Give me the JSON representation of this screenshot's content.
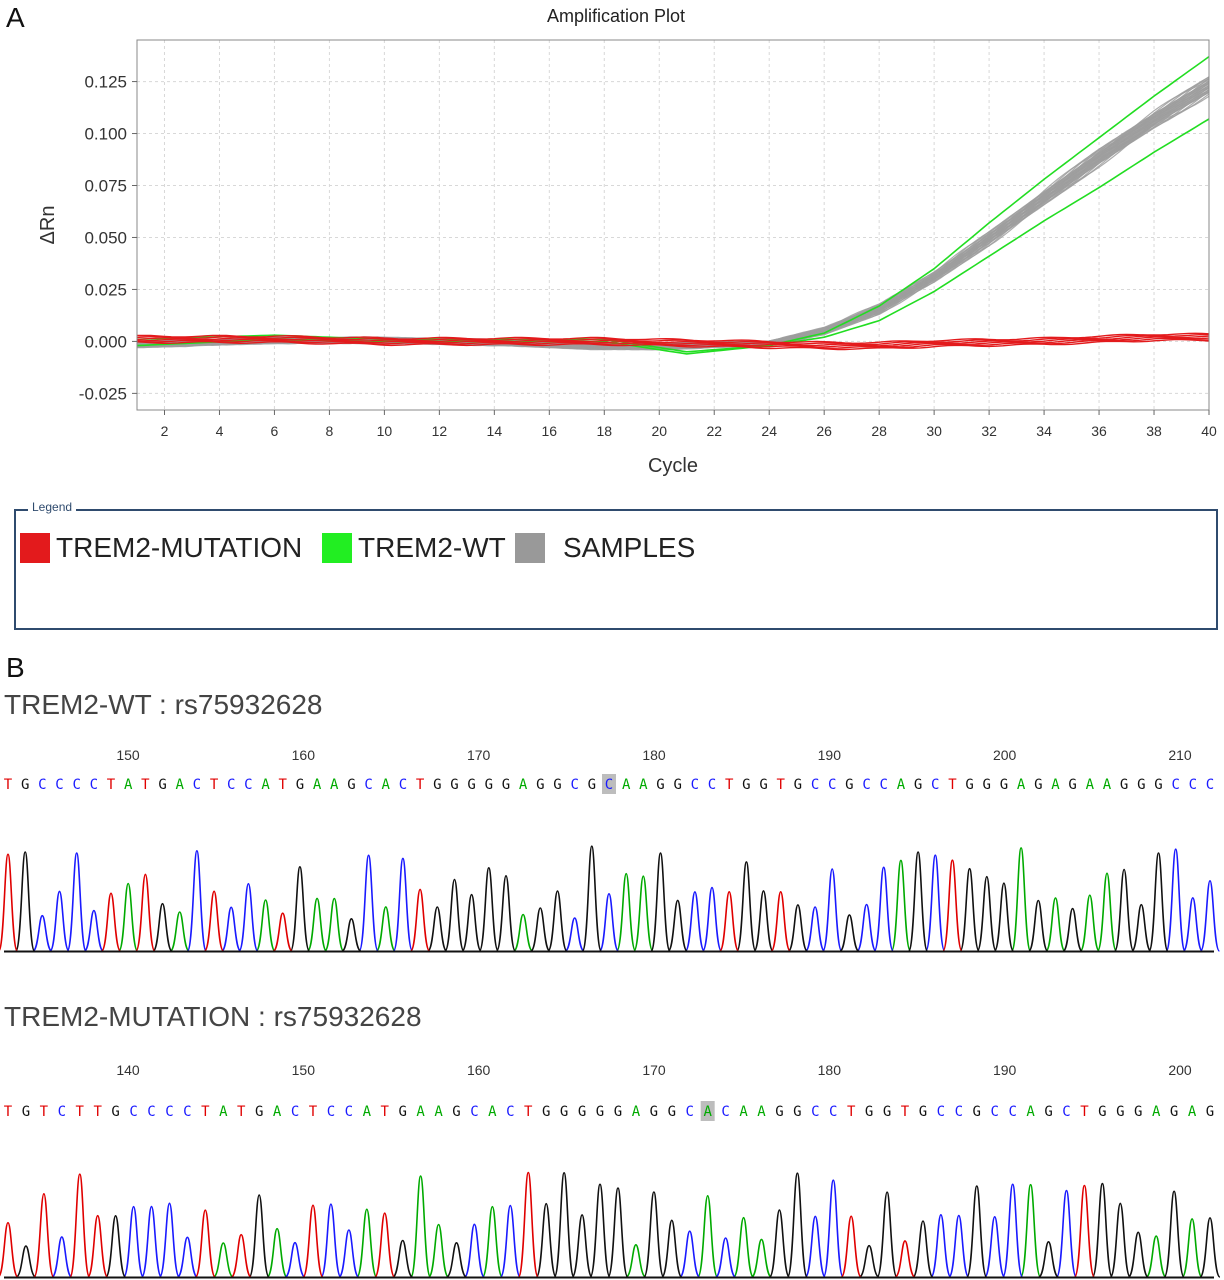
{
  "panels": {
    "a": "A",
    "b": "B"
  },
  "chart_data": {
    "type": "line",
    "title": "Amplification Plot",
    "xlabel": "Cycle",
    "ylabel": "ΔRn",
    "xlim": [
      1,
      40
    ],
    "ylim": [
      -0.033,
      0.145
    ],
    "x_ticks": [
      2,
      4,
      6,
      8,
      10,
      12,
      14,
      16,
      18,
      20,
      22,
      24,
      26,
      28,
      30,
      32,
      34,
      36,
      38,
      40
    ],
    "y_ticks": [
      -0.025,
      0.0,
      0.025,
      0.05,
      0.075,
      0.1,
      0.125
    ],
    "y_tick_labels": [
      "-0.025",
      "0.000",
      "0.025",
      "0.050",
      "0.075",
      "0.100",
      "0.125"
    ],
    "grid": true,
    "series": [
      {
        "name": "TREM2-MUTATION",
        "color": "#e31a1c",
        "x": [
          1,
          6,
          10,
          14,
          18,
          22,
          26,
          28,
          30,
          32,
          34,
          36,
          38,
          40
        ],
        "y": [
          0.001,
          0.001,
          0.0,
          0.0,
          0.0,
          -0.001,
          -0.002,
          -0.002,
          -0.001,
          -0.0005,
          0.0,
          0.001,
          0.002,
          0.002
        ]
      },
      {
        "name": "TREM2-WT",
        "color": "#22dd22",
        "x": [
          1,
          6,
          10,
          14,
          18,
          20,
          21,
          24,
          26,
          28,
          30,
          32,
          34,
          36,
          38,
          40
        ],
        "y": [
          0.001,
          0.003,
          0.001,
          0.001,
          0.001,
          -0.003,
          -0.005,
          -0.002,
          0.004,
          0.017,
          0.035,
          0.057,
          0.078,
          0.098,
          0.118,
          0.137
        ]
      },
      {
        "name": "TREM2-WT",
        "color": "#22dd22",
        "x": [
          1,
          6,
          10,
          14,
          18,
          20,
          21,
          24,
          26,
          28,
          30,
          32,
          34,
          36,
          38,
          40
        ],
        "y": [
          -0.002,
          0.001,
          0.0,
          0.0,
          0.0,
          -0.004,
          -0.006,
          -0.002,
          0.002,
          0.01,
          0.024,
          0.041,
          0.058,
          0.074,
          0.091,
          0.107
        ]
      },
      {
        "name": "SAMPLES",
        "color": "#9e9e9e",
        "x": [
          1,
          6,
          10,
          14,
          18,
          20,
          22,
          24,
          26,
          28,
          30,
          32,
          34,
          36,
          38,
          40
        ],
        "y": [
          -0.001,
          0.001,
          0.001,
          0.0,
          -0.002,
          -0.002,
          -0.001,
          -0.001,
          0.006,
          0.017,
          0.033,
          0.052,
          0.072,
          0.092,
          0.11,
          0.127
        ]
      },
      {
        "name": "SAMPLES",
        "color": "#9e9e9e",
        "x": [
          1,
          6,
          10,
          14,
          18,
          20,
          22,
          24,
          26,
          28,
          30,
          32,
          34,
          36,
          38,
          40
        ],
        "y": [
          -0.002,
          0.0,
          0.0,
          -0.001,
          -0.003,
          -0.003,
          -0.002,
          -0.001,
          0.004,
          0.014,
          0.029,
          0.047,
          0.066,
          0.085,
          0.103,
          0.119
        ]
      }
    ],
    "legend": {
      "caption": "Legend",
      "position": "bottom",
      "items": [
        {
          "label": "TREM2-MUTATION",
          "color": "#e31a1c"
        },
        {
          "label": "TREM2-WT",
          "color": "#22dd22"
        },
        {
          "label": "SAMPLES",
          "color": "#999999"
        }
      ]
    }
  },
  "sequences": [
    {
      "title": "TREM2-WT : rs75932628",
      "position_labels": [
        "150",
        "160",
        "170",
        "180",
        "190",
        "200",
        "210"
      ],
      "bases": "TGCCCCTATGACTCCATGAAGCACTGGGGGAGGCGCAAGGCCTGGTGCCGCCAGCTGGGAGAGAAGGGCCC",
      "highlight_index": 35
    },
    {
      "title": "TREM2-MUTATION : rs75932628",
      "position_labels": [
        "140",
        "150",
        "160",
        "170",
        "180",
        "190",
        "200"
      ],
      "bases": "TGTCTTGCCCCTATGACTCCATGAAGCACTGGGGGAGGCACAAGGCCTGGTGCCGCCAGCTGGGAGAG",
      "highlight_index": 39
    }
  ],
  "base_colors": {
    "A": "#00aa00",
    "C": "#1a1aff",
    "G": "#111111",
    "T": "#e00000"
  }
}
